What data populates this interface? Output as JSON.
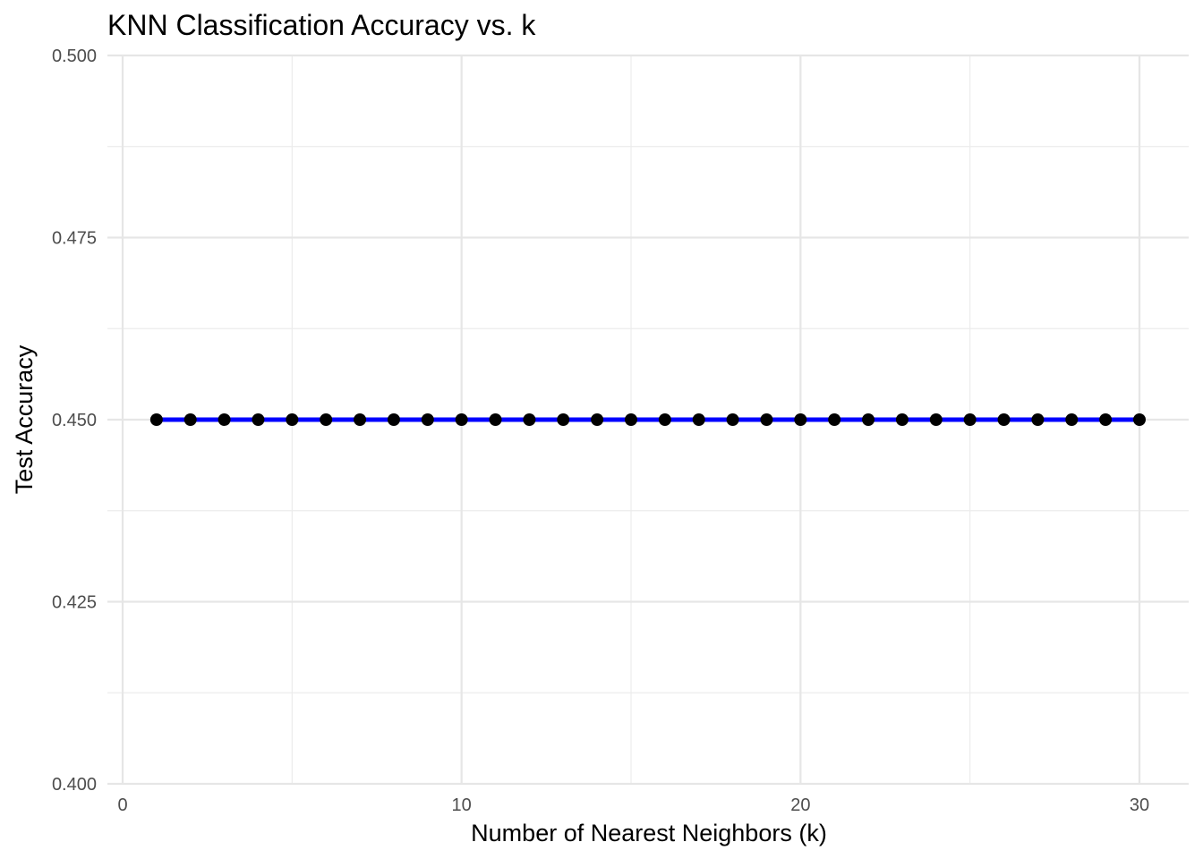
{
  "chart_data": {
    "type": "line",
    "title": "KNN Classification Accuracy vs. k",
    "xlabel": "Number of Nearest Neighbors (k)",
    "ylabel": "Test Accuracy",
    "xlim": [
      0,
      30
    ],
    "ylim": [
      0.4,
      0.5
    ],
    "x_ticks": [
      0,
      10,
      20,
      30
    ],
    "x_tick_labels": [
      "0",
      "10",
      "20",
      "30"
    ],
    "y_ticks": [
      0.4,
      0.425,
      0.45,
      0.475,
      0.5
    ],
    "y_tick_labels": [
      "0.400",
      "0.425",
      "0.450",
      "0.475",
      "0.500"
    ],
    "grid": true,
    "legend": "none",
    "line_color": "#0000ff",
    "point_color": "#000000",
    "series": [
      {
        "x": [
          1,
          2,
          3,
          4,
          5,
          6,
          7,
          8,
          9,
          10,
          11,
          12,
          13,
          14,
          15,
          16,
          17,
          18,
          19,
          20,
          21,
          22,
          23,
          24,
          25,
          26,
          27,
          28,
          29,
          30
        ],
        "values": [
          0.45,
          0.45,
          0.45,
          0.45,
          0.45,
          0.45,
          0.45,
          0.45,
          0.45,
          0.45,
          0.45,
          0.45,
          0.45,
          0.45,
          0.45,
          0.45,
          0.45,
          0.45,
          0.45,
          0.45,
          0.45,
          0.45,
          0.45,
          0.45,
          0.45,
          0.45,
          0.45,
          0.45,
          0.45,
          0.45
        ]
      }
    ]
  }
}
